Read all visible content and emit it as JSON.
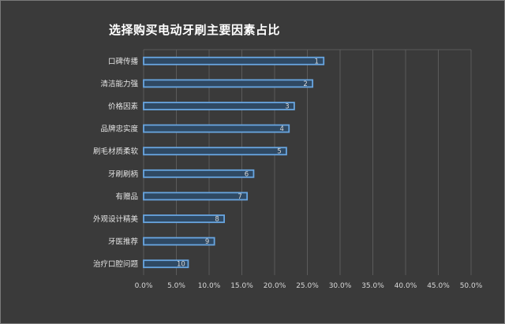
{
  "chart_data": {
    "type": "bar",
    "orientation": "horizontal",
    "title": "选择购买电动牙刷主要因素占比",
    "categories": [
      "口碑传播",
      "清洁能力强",
      "价格因素",
      "品牌忠实度",
      "刷毛材质柔软",
      "牙刷刷柄",
      "有赠品",
      "外观设计精美",
      "牙医推荐",
      "治疗口腔问题"
    ],
    "values": [
      27.5,
      25.8,
      23.0,
      22.2,
      21.8,
      16.8,
      15.8,
      12.3,
      10.8,
      6.8
    ],
    "data_labels": [
      "1",
      "2",
      "3",
      "4",
      "5",
      "6",
      "7",
      "8",
      "9",
      "10"
    ],
    "xlim": [
      0,
      50
    ],
    "xticks": [
      "0.0%",
      "5.0%",
      "10.0%",
      "15.0%",
      "20.0%",
      "25.0%",
      "30.0%",
      "35.0%",
      "40.0%",
      "45.0%",
      "50.0%"
    ],
    "grid": "vertical",
    "legend": "none",
    "colors": {
      "bar_fill": "#2f4963",
      "bar_border": "#68a5e0",
      "background": "#3a3a3a"
    }
  }
}
